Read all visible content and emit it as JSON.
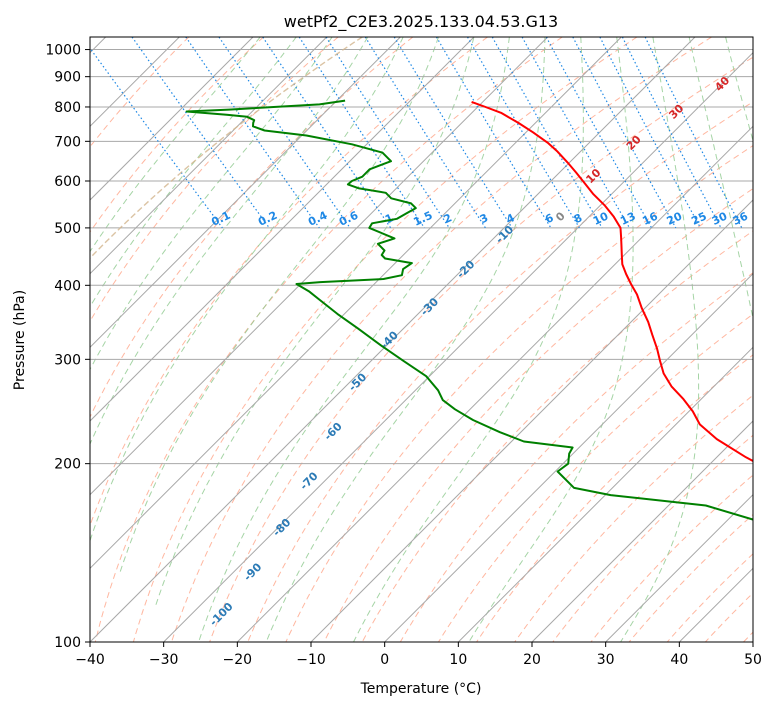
{
  "chart_data": {
    "type": "line",
    "title": "wetPf2_C2E3.2025.133.04.53.G13",
    "xlabel": "Temperature (°C)",
    "ylabel": "Pressure (hPa)",
    "xlim": [
      -40,
      50
    ],
    "ylim": [
      1050,
      100
    ],
    "y_scale": "log",
    "grid": true,
    "x_ticks": [
      "−40",
      "−30",
      "−20",
      "−10",
      "0",
      "10",
      "20",
      "30",
      "40",
      "50"
    ],
    "y_ticks": [
      {
        "p": 100,
        "label": "100"
      },
      {
        "p": 200,
        "label": "200"
      },
      {
        "p": 300,
        "label": "300"
      },
      {
        "p": 400,
        "label": "400"
      },
      {
        "p": 500,
        "label": "500"
      },
      {
        "p": 600,
        "label": "600"
      },
      {
        "p": 700,
        "label": "700"
      },
      {
        "p": 800,
        "label": "800"
      },
      {
        "p": 900,
        "label": "900"
      },
      {
        "p": 1000,
        "label": "1000"
      }
    ],
    "series": [
      {
        "color": "#ff0000",
        "points": [
          [
            -1.5,
            100
          ],
          [
            -3,
            115
          ],
          [
            -4.5,
            130
          ],
          [
            -5.5,
            145
          ],
          [
            -5.7,
            158
          ],
          [
            -5,
            170
          ],
          [
            -5,
            182
          ],
          [
            -6,
            192
          ],
          [
            -8,
            205
          ],
          [
            -9.5,
            220
          ],
          [
            -9.8,
            233
          ],
          [
            -9,
            245
          ],
          [
            -8.6,
            257
          ],
          [
            -8.5,
            270
          ],
          [
            -7.8,
            284
          ],
          [
            -6.6,
            298
          ],
          [
            -5.3,
            313
          ],
          [
            -4.1,
            330
          ],
          [
            -2.9,
            347
          ],
          [
            -1.9,
            366
          ],
          [
            -0.7,
            386
          ],
          [
            -0.1,
            402
          ],
          [
            0.6,
            418
          ],
          [
            1.4,
            434
          ],
          [
            2.6,
            450
          ],
          [
            3.7,
            465
          ],
          [
            4.9,
            482
          ],
          [
            6.1,
            500
          ],
          [
            6.7,
            522
          ],
          [
            7,
            545
          ],
          [
            7,
            570
          ],
          [
            7.3,
            595
          ],
          [
            7.6,
            620
          ],
          [
            7.8,
            645
          ],
          [
            7.9,
            672
          ],
          [
            7.8,
            695
          ],
          [
            7.2,
            725
          ],
          [
            6.5,
            752
          ],
          [
            5.5,
            782
          ],
          [
            4.2,
            800
          ],
          [
            3,
            816
          ]
        ]
      },
      {
        "color": "#008000",
        "points": [
          [
            -5.6,
            100
          ],
          [
            -9,
            113
          ],
          [
            -12,
            126
          ],
          [
            -14,
            140
          ],
          [
            -14,
            150
          ],
          [
            -15,
            160
          ],
          [
            -20,
            170
          ],
          [
            -31.5,
            177
          ],
          [
            -35.5,
            182
          ],
          [
            -35.5,
            194
          ],
          [
            -33,
            200
          ],
          [
            -31.5,
            208
          ],
          [
            -30.2,
            213
          ],
          [
            -36,
            218
          ],
          [
            -38,
            226
          ],
          [
            -40,
            237
          ],
          [
            -41,
            247
          ],
          [
            -41.4,
            256
          ],
          [
            -40.7,
            266
          ],
          [
            -40.4,
            281
          ],
          [
            -41.4,
            298
          ],
          [
            -42.4,
            317
          ],
          [
            -43.2,
            338
          ],
          [
            -44,
            358
          ],
          [
            -44.5,
            378
          ],
          [
            -44.8,
            391
          ],
          [
            -45.5,
            402
          ],
          [
            -42,
            405
          ],
          [
            -33,
            410
          ],
          [
            -30,
            416
          ],
          [
            -29,
            426
          ],
          [
            -27,
            436
          ],
          [
            -30,
            444
          ],
          [
            -30,
            450
          ],
          [
            -29,
            458
          ],
          [
            -29,
            470
          ],
          [
            -26,
            480
          ],
          [
            -28,
            500
          ],
          [
            -27,
            509
          ],
          [
            -23,
            518
          ],
          [
            -21,
            529
          ],
          [
            -19,
            540
          ],
          [
            -19,
            550
          ],
          [
            -21,
            561
          ],
          [
            -21,
            573
          ],
          [
            -24,
            583
          ],
          [
            -25,
            592
          ],
          [
            -24,
            600
          ],
          [
            -22,
            610
          ],
          [
            -20,
            628
          ],
          [
            -16,
            648
          ],
          [
            -16,
            670
          ],
          [
            -19,
            692
          ],
          [
            -24,
            716
          ],
          [
            -29,
            730
          ],
          [
            -30,
            742
          ],
          [
            -29.5,
            752
          ],
          [
            -29,
            760
          ],
          [
            -29.5,
            770
          ],
          [
            -32,
            776
          ],
          [
            -37,
            786
          ],
          [
            -31,
            792
          ],
          [
            -18,
            808
          ],
          [
            -14,
            820
          ]
        ]
      }
    ],
    "dry_adiabats_c": [
      -30,
      -20,
      -10,
      0,
      10,
      20,
      30,
      40,
      50,
      60,
      70,
      80,
      90,
      100,
      110,
      120,
      130,
      140,
      150,
      160,
      170,
      180,
      190,
      200,
      210,
      220,
      230,
      240
    ],
    "moist_adiabats_c": [
      -20,
      -15,
      -10,
      -5,
      0,
      5,
      10,
      15,
      20,
      25,
      30,
      35,
      40,
      45
    ],
    "mixing_ratios": [
      0.1,
      0.2,
      0.4,
      0.6,
      1,
      1.5,
      2,
      3,
      4,
      6,
      8,
      10,
      13,
      16,
      20,
      25,
      30,
      36
    ],
    "mixing_ratio_labels": [
      "0.1",
      "0.2",
      "0.4",
      "0.6",
      "1",
      "1.5",
      "2",
      "3",
      "4",
      "6",
      "8",
      "10",
      "13",
      "16",
      "20",
      "25",
      "30",
      "36"
    ],
    "cold_isotherm_labels": [
      {
        "t": -100,
        "label": "-100"
      },
      {
        "t": -90,
        "label": "-90"
      },
      {
        "t": -80,
        "label": "-80"
      },
      {
        "t": -70,
        "label": "-70"
      },
      {
        "t": -60,
        "label": "-60"
      },
      {
        "t": -50,
        "label": "-50"
      },
      {
        "t": -40,
        "label": "-40"
      },
      {
        "t": -30,
        "label": "-30"
      },
      {
        "t": -20,
        "label": "-20"
      },
      {
        "t": -10,
        "label": "-10"
      }
    ],
    "warm_isotherm_labels": [
      {
        "t": 0,
        "label": "0"
      },
      {
        "t": 10,
        "label": "10"
      },
      {
        "t": 20,
        "label": "20"
      },
      {
        "t": 30,
        "label": "30"
      },
      {
        "t": 40,
        "label": "40"
      }
    ],
    "colors": {
      "isotherm": "#a8a8a8",
      "dry_adiabat": "#ff9f80",
      "moist_adiabat": "#8fc98f",
      "mixing_ratio": "#1e88e5",
      "cold_label": "#2c7bb6",
      "zero_label": "#888888",
      "warm_label": "#d62728",
      "tan_curve": "#d2b48c"
    }
  }
}
